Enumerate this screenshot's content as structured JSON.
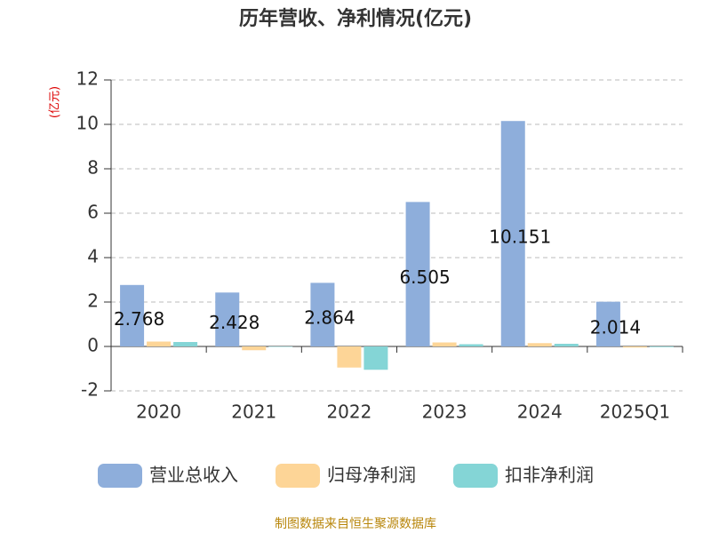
{
  "chart_data": {
    "type": "bar",
    "title": "历年营收、净利情况(亿元)",
    "y_label": "(亿元)",
    "source": "制图数据来自恒生聚源数据库",
    "categories": [
      "2020",
      "2021",
      "2022",
      "2023",
      "2024",
      "2025Q1"
    ],
    "series": [
      {
        "name": "营业总收入",
        "color": "#8eaedb",
        "values": [
          2.768,
          2.428,
          2.864,
          6.505,
          10.151,
          2.014
        ],
        "show_labels": true
      },
      {
        "name": "归母净利润",
        "color": "#fdd597",
        "values": [
          0.22,
          -0.17,
          -0.95,
          0.18,
          0.15,
          -0.05
        ],
        "show_labels": false
      },
      {
        "name": "扣非净利润",
        "color": "#84d5d6",
        "values": [
          0.2,
          -0.02,
          -1.05,
          0.1,
          0.12,
          -0.03
        ],
        "show_labels": false
      }
    ],
    "ylim": [
      -2,
      12
    ],
    "yticks": [
      -2,
      0,
      2,
      4,
      6,
      8,
      10,
      12
    ],
    "grid": true
  }
}
